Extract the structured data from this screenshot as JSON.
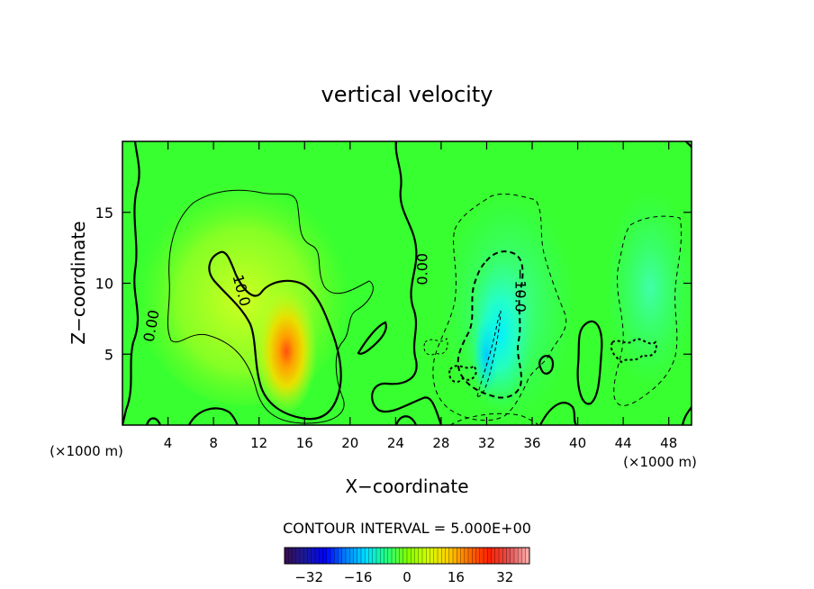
{
  "chart_data": {
    "type": "heatmap",
    "title": "vertical velocity",
    "xlabel": "X−coordinate",
    "ylabel": "Z−coordinate",
    "x_unit_left": "(×1000 m)",
    "x_unit_right": "(×1000 m)",
    "xlim": [
      0,
      50
    ],
    "ylim": [
      0,
      20
    ],
    "x_ticks": [
      4,
      8,
      12,
      16,
      20,
      24,
      28,
      32,
      36,
      40,
      44,
      48
    ],
    "y_ticks": [
      5,
      10,
      15
    ],
    "contour_interval_label": "CONTOUR INTERVAL = 5.000E+00",
    "contour_interval": 5,
    "contour_labels": [
      {
        "text": "0.00",
        "x": 2.5,
        "y": 7.0,
        "rotate": -80
      },
      {
        "text": "10.0",
        "x": 10.5,
        "y": 9.5,
        "rotate": 75
      },
      {
        "text": "0.00",
        "x": 26.3,
        "y": 11.0,
        "rotate": -90
      },
      {
        "text": "−10.0",
        "x": 35.0,
        "y": 9.5,
        "rotate": 90
      }
    ],
    "features": [
      {
        "name": "updraft core",
        "x": 14.2,
        "y": 5.5,
        "value": 30
      },
      {
        "name": "downdraft core",
        "x": 32.5,
        "y": 6.0,
        "value": -18
      }
    ],
    "colorbar": {
      "ticks": [
        -32,
        -16,
        0,
        16,
        32
      ],
      "range": [
        -40,
        40
      ],
      "colors": [
        "#3a0a50",
        "#1a1a9a",
        "#0000ff",
        "#0080ff",
        "#00e0ff",
        "#20ff80",
        "#80ff00",
        "#d0ff00",
        "#ffd000",
        "#ff7000",
        "#ff2000",
        "#e05050",
        "#ffb0b0"
      ]
    }
  }
}
